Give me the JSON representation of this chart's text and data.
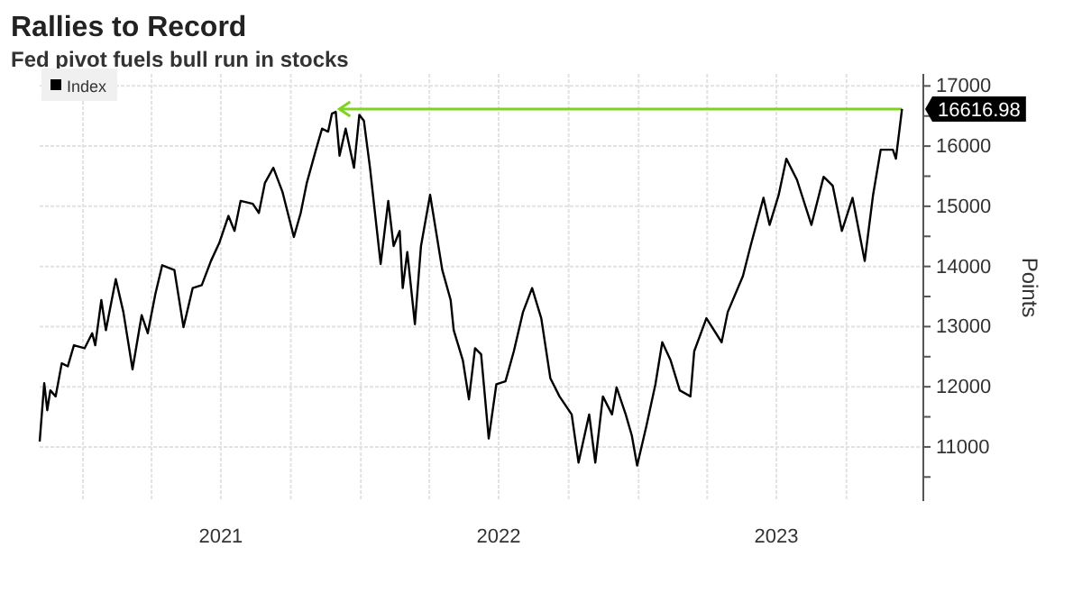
{
  "chart_data": {
    "type": "line",
    "title": "Rallies to Record",
    "subtitle": "Fed pivot fuels bull run in stocks",
    "ylabel": "Points",
    "x": [
      "2020-11-05",
      "2020-11-11",
      "2020-11-15",
      "2020-11-19",
      "2020-11-26",
      "2020-12-04",
      "2020-12-12",
      "2020-12-20",
      "2021-01-03",
      "2021-01-13",
      "2021-01-17",
      "2021-01-25",
      "2021-01-31",
      "2021-02-13",
      "2021-02-23",
      "2021-03-07",
      "2021-03-19",
      "2021-03-27",
      "2021-04-06",
      "2021-04-15",
      "2021-05-01",
      "2021-05-13",
      "2021-05-25",
      "2021-06-06",
      "2021-06-18",
      "2021-06-29",
      "2021-07-11",
      "2021-07-19",
      "2021-07-27",
      "2021-08-12",
      "2021-08-20",
      "2021-08-28",
      "2021-09-08",
      "2021-09-20",
      "2021-09-24",
      "2021-10-05",
      "2021-10-14",
      "2021-10-22",
      "2021-11-03",
      "2021-11-11",
      "2021-11-19",
      "2021-11-24",
      "2021-11-29",
      "2021-12-04",
      "2021-12-12",
      "2021-12-23",
      "2021-12-30",
      "2022-01-05",
      "2022-01-13",
      "2022-01-27",
      "2022-02-06",
      "2022-02-13",
      "2022-02-21",
      "2022-02-25",
      "2022-03-03",
      "2022-03-13",
      "2022-03-21",
      "2022-04-02",
      "2022-04-18",
      "2022-04-29",
      "2022-05-03",
      "2022-05-15",
      "2022-05-23",
      "2022-05-31",
      "2022-06-08",
      "2022-06-18",
      "2022-06-28",
      "2022-07-10",
      "2022-07-21",
      "2022-08-02",
      "2022-08-14",
      "2022-08-26",
      "2022-09-07",
      "2022-09-19",
      "2022-10-05",
      "2022-10-14",
      "2022-10-28",
      "2022-11-05",
      "2022-11-15",
      "2022-11-27",
      "2022-12-03",
      "2022-12-15",
      "2022-12-23",
      "2022-12-30",
      "2023-01-11",
      "2023-01-23",
      "2023-02-01",
      "2023-02-12",
      "2023-02-24",
      "2023-03-10",
      "2023-03-15",
      "2023-03-31",
      "2023-04-20",
      "2023-04-28",
      "2023-05-18",
      "2023-05-28",
      "2023-06-14",
      "2023-06-22",
      "2023-07-04",
      "2023-07-14",
      "2023-07-28",
      "2023-08-16",
      "2023-09-01",
      "2023-09-13",
      "2023-09-25",
      "2023-10-09",
      "2023-10-25",
      "2023-11-05",
      "2023-11-15",
      "2023-12-01",
      "2023-12-05",
      "2023-12-13"
    ],
    "series": [
      {
        "name": "Index",
        "color": "#000000",
        "values": [
          11090,
          12060,
          11610,
          11940,
          11840,
          12390,
          12340,
          12690,
          12640,
          12890,
          12690,
          13440,
          12940,
          13790,
          13240,
          12290,
          13190,
          12890,
          13540,
          14020,
          13940,
          12990,
          13640,
          13690,
          14090,
          14390,
          14840,
          14590,
          15090,
          15040,
          14890,
          15390,
          15640,
          15240,
          15040,
          14490,
          14890,
          15390,
          15940,
          16290,
          16240,
          16540,
          16570,
          15840,
          16290,
          15640,
          16520,
          16420,
          15640,
          14040,
          15090,
          14340,
          14590,
          13640,
          14240,
          13040,
          14340,
          15190,
          13940,
          13440,
          12940,
          12440,
          11790,
          12640,
          12540,
          11140,
          12040,
          12090,
          12590,
          13240,
          13640,
          13140,
          12140,
          11840,
          11540,
          10740,
          11540,
          10740,
          11840,
          11540,
          11990,
          11540,
          11190,
          10690,
          11340,
          12040,
          12740,
          12440,
          11940,
          11840,
          12590,
          13140,
          12740,
          13240,
          13840,
          14340,
          15140,
          14690,
          15190,
          15790,
          15440,
          14690,
          15490,
          15340,
          14590,
          15140,
          14090,
          15190,
          15940,
          15940,
          15790,
          16616.98
        ]
      }
    ],
    "xlim": [
      "2020-11-05",
      "2024-01-10"
    ],
    "xticks": [
      {
        "value": "2021-01-01",
        "label": null
      },
      {
        "value": "2021-04-01",
        "label": null
      },
      {
        "value": "2021-07-01",
        "label": "2021"
      },
      {
        "value": "2021-10-01",
        "label": null
      },
      {
        "value": "2022-01-01",
        "label": null
      },
      {
        "value": "2022-04-01",
        "label": null
      },
      {
        "value": "2022-07-01",
        "label": "2022"
      },
      {
        "value": "2022-10-01",
        "label": null
      },
      {
        "value": "2023-01-01",
        "label": null
      },
      {
        "value": "2023-04-01",
        "label": null
      },
      {
        "value": "2023-07-01",
        "label": "2023"
      },
      {
        "value": "2023-10-01",
        "label": null
      }
    ],
    "ylim": [
      10100,
      17200
    ],
    "yticks": [
      {
        "value": 10500,
        "label": null
      },
      11000,
      {
        "value": 11500,
        "label": null
      },
      12000,
      {
        "value": 12500,
        "label": null
      },
      13000,
      {
        "value": 13500,
        "label": null
      },
      14000,
      {
        "value": 14500,
        "label": null
      },
      15000,
      {
        "value": 15500,
        "label": null
      },
      16000,
      {
        "value": 16500,
        "label": null
      },
      17000
    ],
    "ref_lines": [
      {
        "axis": "y",
        "value": 16616.98,
        "color": "#7ed321"
      }
    ],
    "annotations": [
      {
        "text": "16616.98",
        "x": "2023-12-13",
        "y": 16616.98
      }
    ],
    "grid": true,
    "legend": "top left"
  }
}
